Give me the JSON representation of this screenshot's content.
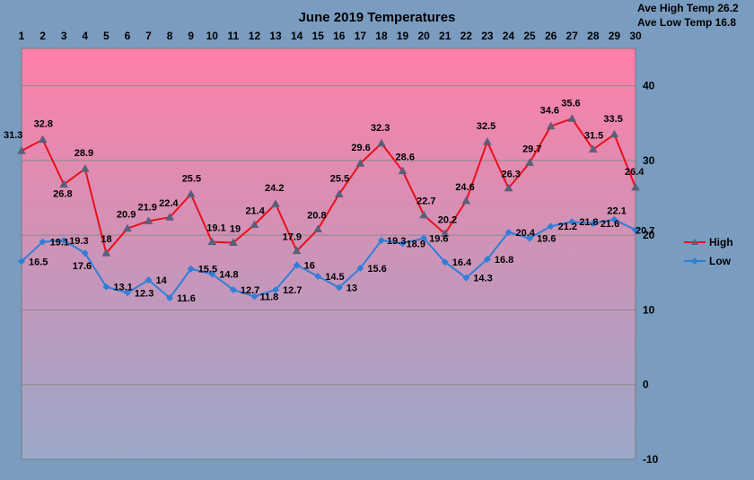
{
  "chart_data": {
    "type": "line",
    "title": "June 2019 Temperatures",
    "notes": [
      "Ave High Temp 26.2",
      "Ave Low Temp 16.8"
    ],
    "x": [
      1,
      2,
      3,
      4,
      5,
      6,
      7,
      8,
      9,
      10,
      11,
      12,
      13,
      14,
      15,
      16,
      17,
      18,
      19,
      20,
      21,
      22,
      23,
      24,
      25,
      26,
      27,
      28,
      29,
      30
    ],
    "x_ticks": [
      "1",
      "2",
      "3",
      "4",
      "5",
      "6",
      "7",
      "8",
      "9",
      "10",
      "11",
      "12",
      "13",
      "14",
      "15",
      "16",
      "17",
      "18",
      "19",
      "20",
      "21",
      "22",
      "23",
      "24",
      "25",
      "26",
      "27",
      "28",
      "29",
      "30"
    ],
    "series": [
      {
        "name": "High",
        "color": "#e8101a",
        "marker": "triangle",
        "values": [
          31.3,
          32.8,
          26.8,
          28.9,
          17.6,
          20.9,
          21.9,
          22.4,
          25.5,
          19.1,
          19,
          21.4,
          24.2,
          17.9,
          20.8,
          25.5,
          29.6,
          32.3,
          28.6,
          22.7,
          20.2,
          24.6,
          32.5,
          26.3,
          29.7,
          34.6,
          35.6,
          31.5,
          33.5,
          26.4
        ],
        "labels": [
          "31.3",
          "32.8",
          "26.8",
          "28.9",
          "18",
          "20.9",
          "21.9",
          "22.4",
          "25.5",
          "19.1",
          "19",
          "21.4",
          "24.2",
          "17.9",
          "20.8",
          "25.5",
          "29.6",
          "32.3",
          "28.6",
          "22.7",
          "20.2",
          "24.6",
          "32.5",
          "26.3",
          "29.7",
          "34.6",
          "35.6",
          "31.5",
          "33.5",
          "26.4"
        ]
      },
      {
        "name": "Low",
        "color": "#2f7fd8",
        "marker": "diamond",
        "values": [
          16.5,
          19.1,
          19.3,
          17.6,
          13.1,
          12.3,
          14,
          11.6,
          15.5,
          14.8,
          12.7,
          11.8,
          12.7,
          16,
          14.5,
          13,
          15.6,
          19.3,
          18.9,
          19.6,
          16.4,
          14.3,
          16.8,
          20.4,
          19.6,
          21.2,
          21.8,
          21.6,
          22.1,
          20.7
        ],
        "labels": [
          "16.5",
          "19.1",
          "19.3",
          "17.6",
          "13.1",
          "12.3",
          "14",
          "11.6",
          "15.5",
          "14.8",
          "12.7",
          "11.8",
          "12.7",
          "16",
          "14.5",
          "13",
          "15.6",
          "19.3",
          "18.9",
          "19.6",
          "16.4",
          "14.3",
          "16.8",
          "20.4",
          "19.6",
          "21.2",
          "21.8",
          "21.6",
          "22.1",
          "20.7"
        ]
      }
    ],
    "y_ticks": [
      -10,
      0,
      10,
      20,
      30,
      40
    ],
    "ylim": [
      -10,
      45
    ],
    "y_axis_side": "right",
    "x_axis_side": "top",
    "grid": true,
    "legend_placement": "right",
    "plot_gradient": [
      "#ff7fa8",
      "#9aa8c8"
    ]
  }
}
